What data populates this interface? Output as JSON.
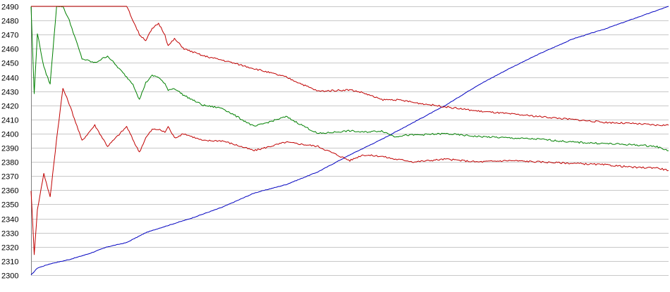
{
  "chart_data": {
    "type": "line",
    "title": "",
    "xlabel": "",
    "ylabel": "",
    "ylim": [
      2300,
      2490
    ],
    "xlim": [
      0,
      1000
    ],
    "grid": true,
    "legend": "none",
    "yticks": [
      2300,
      2310,
      2320,
      2330,
      2340,
      2350,
      2360,
      2370,
      2380,
      2390,
      2400,
      2410,
      2420,
      2430,
      2440,
      2450,
      2460,
      2470,
      2480,
      2490
    ],
    "ytick_labels": [
      "2300",
      "2310",
      "2320",
      "2330",
      "2340",
      "2350",
      "2360",
      "2370",
      "2380",
      "2390",
      "2400",
      "2410",
      "2420",
      "2430",
      "2440",
      "2450",
      "2460",
      "2470",
      "2480",
      "2490"
    ],
    "series": [
      {
        "color": "#0000c0",
        "x": [
          0,
          10,
          30,
          60,
          90,
          120,
          150,
          180,
          200,
          250,
          300,
          350,
          400,
          450,
          500,
          550,
          600,
          650,
          700,
          750,
          800,
          850,
          900,
          950,
          1000
        ],
        "y": [
          2300,
          2305,
          2308,
          2311,
          2315,
          2320,
          2323,
          2330,
          2333,
          2340,
          2348,
          2358,
          2364,
          2373,
          2385,
          2396,
          2408,
          2420,
          2434,
          2446,
          2457,
          2467,
          2474,
          2482,
          2490
        ]
      },
      {
        "color": "#c00000",
        "x": [
          0,
          5,
          10,
          20,
          30,
          40,
          50,
          60,
          80,
          100,
          120,
          150,
          165,
          170,
          180,
          190,
          200,
          210,
          215,
          225,
          240,
          270,
          300,
          350,
          400,
          450,
          500,
          520,
          550,
          570,
          590,
          600,
          650,
          700,
          750,
          800,
          850,
          900,
          950,
          980,
          1000
        ],
        "y": [
          2360,
          2315,
          2346,
          2372,
          2355,
          2396,
          2432,
          2421,
          2395,
          2406,
          2391,
          2405,
          2391,
          2387,
          2397,
          2403,
          2403,
          2401,
          2405,
          2397,
          2400,
          2395,
          2395,
          2388,
          2394,
          2391,
          2381,
          2385,
          2384,
          2382,
          2381,
          2380,
          2382,
          2380,
          2381,
          2380,
          2379,
          2378,
          2376,
          2376,
          2374
        ]
      },
      {
        "color": "#008000",
        "x": [
          0,
          5,
          10,
          20,
          30,
          40,
          50,
          60,
          80,
          100,
          120,
          150,
          160,
          170,
          180,
          190,
          200,
          210,
          215,
          225,
          240,
          270,
          300,
          350,
          400,
          450,
          500,
          520,
          550,
          570,
          590,
          600,
          650,
          700,
          750,
          800,
          850,
          900,
          950,
          980,
          1000
        ],
        "y": [
          2490,
          2428,
          2471,
          2447,
          2435,
          2490,
          2490,
          2480,
          2453,
          2450,
          2455,
          2440,
          2435,
          2424,
          2436,
          2441,
          2440,
          2435,
          2431,
          2432,
          2427,
          2420,
          2418,
          2405,
          2412,
          2400,
          2402,
          2401,
          2402,
          2398,
          2399,
          2399,
          2400,
          2398,
          2397,
          2396,
          2394,
          2393,
          2392,
          2391,
          2388
        ]
      },
      {
        "color": "#c00000",
        "x": [
          0,
          150,
          160,
          170,
          180,
          190,
          200,
          210,
          215,
          225,
          240,
          270,
          300,
          350,
          400,
          450,
          500,
          520,
          550,
          570,
          590,
          600,
          650,
          700,
          750,
          800,
          850,
          900,
          950,
          980,
          1000
        ],
        "y": [
          2490,
          2490,
          2480,
          2470,
          2466,
          2474,
          2478,
          2470,
          2462,
          2467,
          2460,
          2455,
          2452,
          2446,
          2440,
          2430,
          2431,
          2429,
          2424,
          2424,
          2423,
          2422,
          2419,
          2416,
          2414,
          2412,
          2410,
          2408,
          2407,
          2406,
          2406
        ]
      }
    ]
  }
}
